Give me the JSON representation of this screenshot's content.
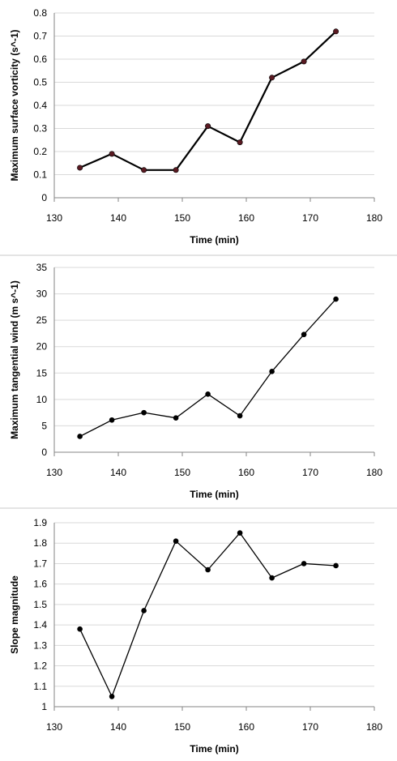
{
  "chart_data": [
    {
      "type": "line",
      "xlabel": "Time (min)",
      "ylabel": "Maximum surface vorticity (s^-1)",
      "xlim": [
        130,
        180
      ],
      "ylim": [
        0,
        0.8
      ],
      "x_ticks": [
        "130",
        "140",
        "150",
        "160",
        "170",
        "180"
      ],
      "y_ticks": [
        "0",
        "0.1",
        "0.2",
        "0.3",
        "0.4",
        "0.5",
        "0.6",
        "0.7",
        "0.8"
      ],
      "grid": true,
      "line_width": "thick",
      "colors": {
        "line": "#000000",
        "marker": "#5a1a22"
      },
      "x": [
        134,
        139,
        144,
        149,
        154,
        159,
        164,
        169,
        174
      ],
      "y": [
        0.13,
        0.19,
        0.12,
        0.12,
        0.31,
        0.24,
        0.52,
        0.59,
        0.72
      ]
    },
    {
      "type": "line",
      "xlabel": "Time (min)",
      "ylabel": "Maximum tangential wind (m s^-1)",
      "xlim": [
        130,
        180
      ],
      "ylim": [
        0,
        35
      ],
      "x_ticks": [
        "130",
        "140",
        "150",
        "160",
        "170",
        "180"
      ],
      "y_ticks": [
        "0",
        "5",
        "10",
        "15",
        "20",
        "25",
        "30",
        "35"
      ],
      "grid": true,
      "line_width": "thin",
      "colors": {
        "line": "#000000",
        "marker": "#000000"
      },
      "x": [
        134,
        139,
        144,
        149,
        154,
        159,
        164,
        169,
        174
      ],
      "y": [
        3,
        6.1,
        7.5,
        6.5,
        11,
        6.9,
        15.3,
        22.3,
        29
      ]
    },
    {
      "type": "line",
      "xlabel": "Time (min)",
      "ylabel": "Slope magnitude",
      "xlim": [
        130,
        180
      ],
      "ylim": [
        1,
        1.9
      ],
      "x_ticks": [
        "130",
        "140",
        "150",
        "160",
        "170",
        "180"
      ],
      "y_ticks": [
        "1",
        "1.1",
        "1.2",
        "1.3",
        "1.4",
        "1.5",
        "1.6",
        "1.7",
        "1.8",
        "1.9"
      ],
      "grid": true,
      "line_width": "thin",
      "colors": {
        "line": "#000000",
        "marker": "#000000"
      },
      "x": [
        134,
        139,
        144,
        149,
        154,
        159,
        164,
        169,
        174
      ],
      "y": [
        1.38,
        1.05,
        1.47,
        1.81,
        1.67,
        1.85,
        1.63,
        1.7,
        1.69
      ]
    }
  ]
}
